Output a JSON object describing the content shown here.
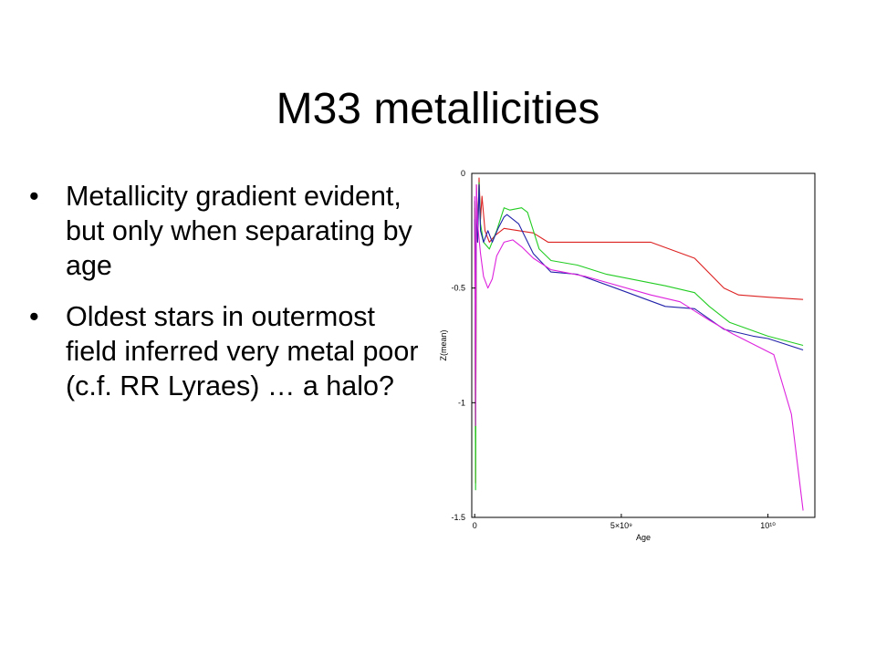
{
  "slide": {
    "title": "M33 metallicities",
    "bullets": [
      "Metallicity gradient evident, but only when separating by age",
      " Oldest stars in outermost field inferred very metal poor (c.f. RR Lyraes) … a halo?"
    ],
    "bullet_glyph": "•"
  },
  "chart_data": {
    "type": "line",
    "xlabel": "Age",
    "ylabel": "Z(mean)",
    "xlim": [
      -100000000.0,
      11600000000.0
    ],
    "ylim": [
      -1.5,
      0
    ],
    "x_ticks": [
      {
        "value": 0,
        "label": "0"
      },
      {
        "value": 5000000000.0,
        "label": "5×10⁹"
      },
      {
        "value": 10000000000.0,
        "label": "10¹⁰"
      }
    ],
    "y_ticks": [
      {
        "value": 0,
        "label": "0"
      },
      {
        "value": -0.5,
        "label": "-0.5"
      },
      {
        "value": -1,
        "label": "-1"
      },
      {
        "value": -1.5,
        "label": "-1.5"
      }
    ],
    "grid": false,
    "series": [
      {
        "color": "#dd2222",
        "points": [
          [
            0.0,
            -0.15
          ],
          [
            30000000.0,
            -1.35
          ],
          [
            60000000.0,
            -0.05
          ],
          [
            100000000.0,
            -0.3
          ],
          [
            150000000.0,
            -0.02
          ],
          [
            200000000.0,
            -0.2
          ],
          [
            250000000.0,
            -0.1
          ],
          [
            350000000.0,
            -0.25
          ],
          [
            500000000.0,
            -0.3
          ],
          [
            700000000.0,
            -0.27
          ],
          [
            1000000000.0,
            -0.24
          ],
          [
            1500000000.0,
            -0.25
          ],
          [
            2000000000.0,
            -0.26
          ],
          [
            2500000000.0,
            -0.3
          ],
          [
            4000000000.0,
            -0.3
          ],
          [
            6000000000.0,
            -0.3
          ],
          [
            7500000000.0,
            -0.37
          ],
          [
            8500000000.0,
            -0.5
          ],
          [
            9000000000.0,
            -0.53
          ],
          [
            10000000000.0,
            -0.54
          ],
          [
            11200000000.0,
            -0.55
          ]
        ]
      },
      {
        "color": "#22cc22",
        "points": [
          [
            0.0,
            -0.12
          ],
          [
            30000000.0,
            -1.38
          ],
          [
            60000000.0,
            -0.08
          ],
          [
            100000000.0,
            -0.25
          ],
          [
            150000000.0,
            -0.04
          ],
          [
            200000000.0,
            -0.22
          ],
          [
            300000000.0,
            -0.3
          ],
          [
            500000000.0,
            -0.33
          ],
          [
            750000000.0,
            -0.25
          ],
          [
            1000000000.0,
            -0.15
          ],
          [
            1200000000.0,
            -0.16
          ],
          [
            1600000000.0,
            -0.15
          ],
          [
            1800000000.0,
            -0.17
          ],
          [
            2200000000.0,
            -0.33
          ],
          [
            2600000000.0,
            -0.38
          ],
          [
            3500000000.0,
            -0.4
          ],
          [
            4500000000.0,
            -0.44
          ],
          [
            6500000000.0,
            -0.49
          ],
          [
            7500000000.0,
            -0.52
          ],
          [
            8000000000.0,
            -0.58
          ],
          [
            8700000000.0,
            -0.65
          ],
          [
            10000000000.0,
            -0.71
          ],
          [
            11200000000.0,
            -0.75
          ]
        ]
      },
      {
        "color": "#2222aa",
        "points": [
          [
            0.0,
            -0.2
          ],
          [
            30000000.0,
            -0.55
          ],
          [
            60000000.0,
            -0.1
          ],
          [
            100000000.0,
            -0.3
          ],
          [
            150000000.0,
            -0.05
          ],
          [
            200000000.0,
            -0.25
          ],
          [
            300000000.0,
            -0.3
          ],
          [
            450000000.0,
            -0.25
          ],
          [
            600000000.0,
            -0.3
          ],
          [
            800000000.0,
            -0.24
          ],
          [
            1000000000.0,
            -0.19
          ],
          [
            1100000000.0,
            -0.18
          ],
          [
            1500000000.0,
            -0.22
          ],
          [
            2000000000.0,
            -0.35
          ],
          [
            2600000000.0,
            -0.43
          ],
          [
            3500000000.0,
            -0.44
          ],
          [
            4800000000.0,
            -0.5
          ],
          [
            6500000000.0,
            -0.58
          ],
          [
            7500000000.0,
            -0.59
          ],
          [
            8500000000.0,
            -0.68
          ],
          [
            9500000000.0,
            -0.71
          ],
          [
            10000000000.0,
            -0.72
          ],
          [
            11200000000.0,
            -0.77
          ]
        ]
      },
      {
        "color": "#dd22dd",
        "points": [
          [
            0.0,
            -0.1
          ],
          [
            30000000.0,
            -1.1
          ],
          [
            60000000.0,
            -0.05
          ],
          [
            100000000.0,
            -0.22
          ],
          [
            200000000.0,
            -0.35
          ],
          [
            300000000.0,
            -0.45
          ],
          [
            450000000.0,
            -0.5
          ],
          [
            600000000.0,
            -0.46
          ],
          [
            750000000.0,
            -0.36
          ],
          [
            1000000000.0,
            -0.3
          ],
          [
            1300000000.0,
            -0.29
          ],
          [
            1600000000.0,
            -0.32
          ],
          [
            2000000000.0,
            -0.37
          ],
          [
            2600000000.0,
            -0.42
          ],
          [
            3800000000.0,
            -0.45
          ],
          [
            6000000000.0,
            -0.53
          ],
          [
            7000000000.0,
            -0.56
          ],
          [
            8000000000.0,
            -0.64
          ],
          [
            8800000000.0,
            -0.7
          ],
          [
            10200000000.0,
            -0.79
          ],
          [
            10800000000.0,
            -1.05
          ],
          [
            11200000000.0,
            -1.47
          ]
        ]
      }
    ]
  }
}
